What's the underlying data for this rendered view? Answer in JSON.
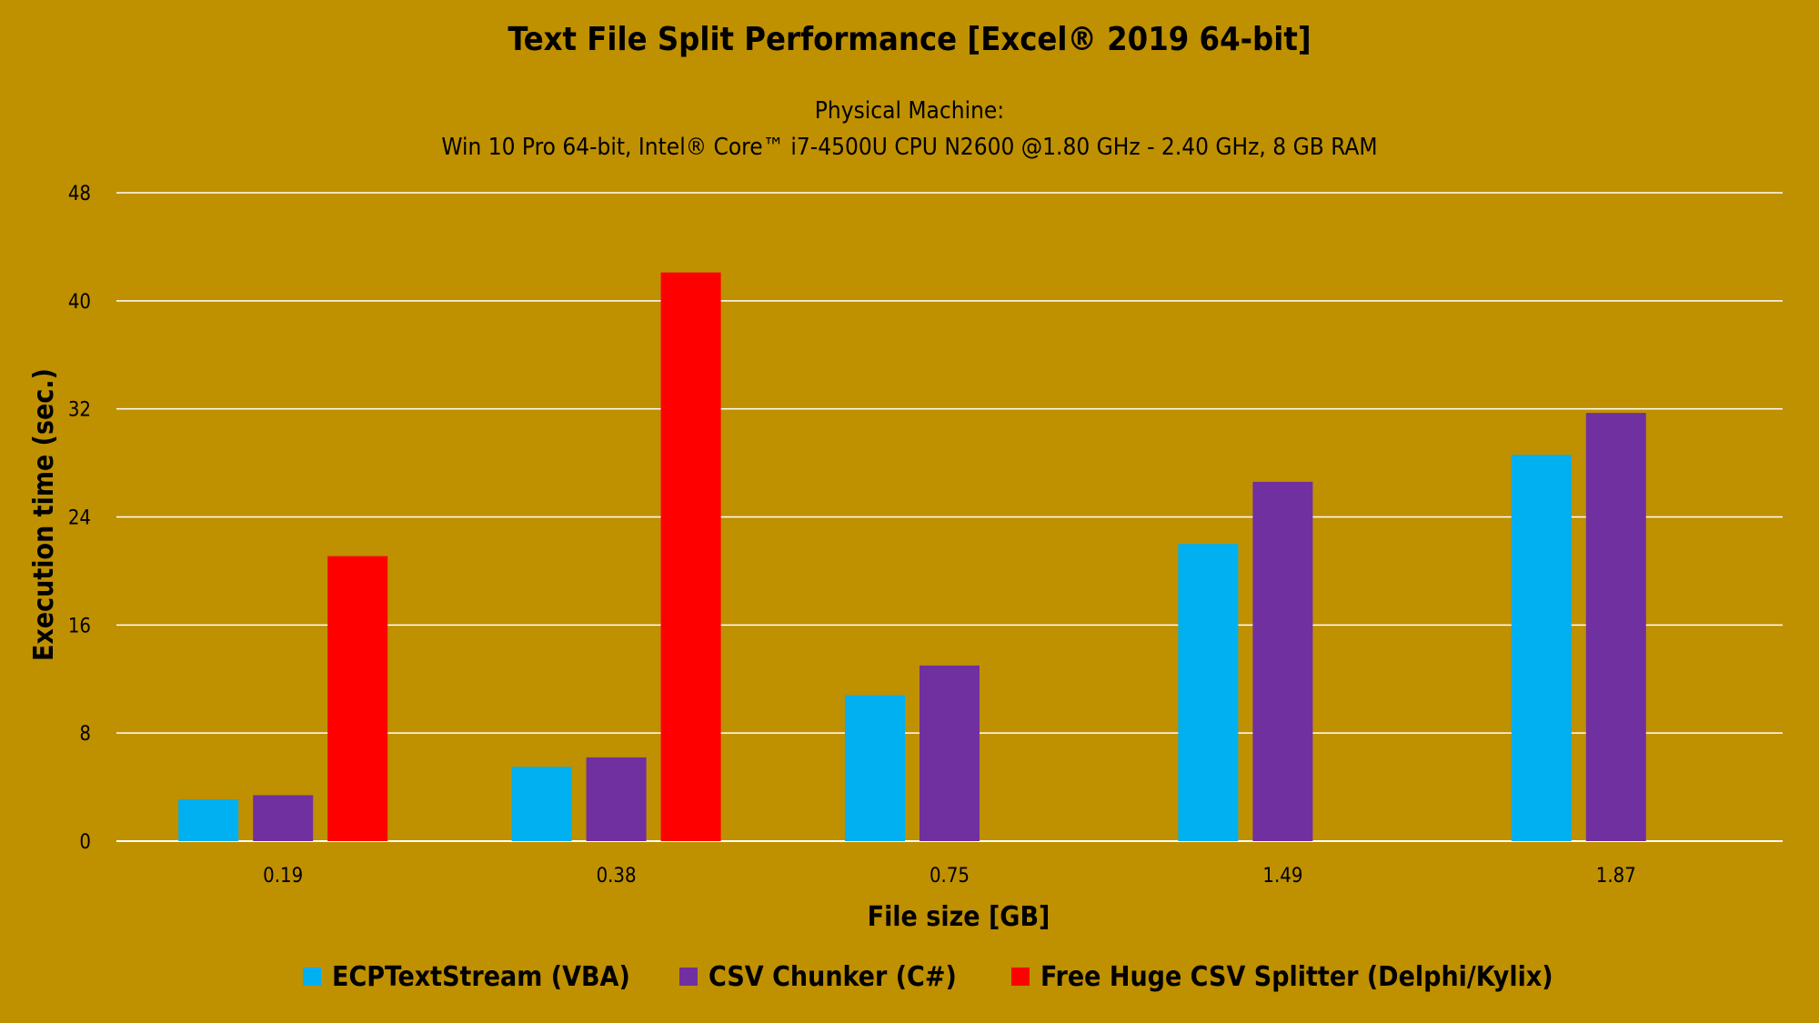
{
  "chart_data": {
    "type": "bar",
    "title": "Text File Split Performance [Excel® 2019 64-bit]",
    "subtitle_lines": [
      "Physical Machine:",
      "Win 10 Pro 64-bit, Intel® Core™ i7-4500U CPU N2600 @1.80 GHz - 2.40 GHz, 8 GB RAM"
    ],
    "xlabel": "File size [GB]",
    "ylabel": "Execution time (sec.)",
    "categories": [
      "0.19",
      "0.38",
      "0.75",
      "1.49",
      "1.87"
    ],
    "ylim": [
      0,
      48
    ],
    "yticks": [
      0,
      8,
      16,
      24,
      32,
      40,
      48
    ],
    "grid": true,
    "legend_position": "bottom",
    "series": [
      {
        "name": "ECPTextStream (VBA)",
        "color": "#00b0f0",
        "values": [
          3.1,
          5.5,
          10.8,
          22.0,
          28.6
        ]
      },
      {
        "name": "CSV Chunker (C#)",
        "color": "#7030a0",
        "values": [
          3.4,
          6.2,
          13.0,
          26.6,
          31.7
        ]
      },
      {
        "name": "Free Huge CSV Splitter (Delphi/Kylix)",
        "color": "#ff0000",
        "values": [
          21.1,
          42.1,
          null,
          null,
          null
        ]
      }
    ]
  }
}
